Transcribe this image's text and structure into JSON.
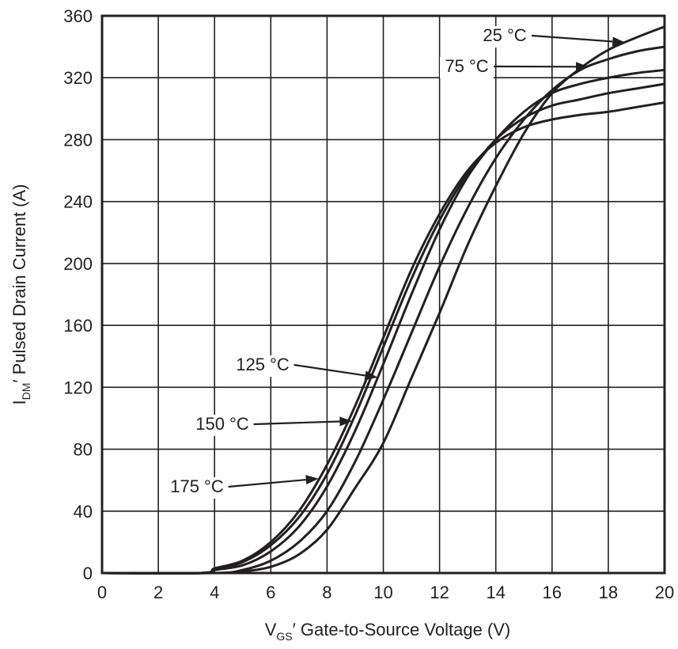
{
  "chart_data": {
    "type": "line",
    "title": "",
    "xlabel": {
      "main": "V",
      "sub": "GS",
      "rest": "′ Gate-to-Source Voltage (V)"
    },
    "ylabel": {
      "main": "I",
      "sub": "DM",
      "rest": "′ Pulsed Drain Current (A)"
    },
    "xlim": [
      0,
      20
    ],
    "ylim": [
      0,
      360
    ],
    "x_ticks": [
      "0",
      "2",
      "4",
      "6",
      "8",
      "10",
      "12",
      "14",
      "16",
      "18",
      "20"
    ],
    "y_ticks": [
      "0",
      "40",
      "80",
      "120",
      "160",
      "200",
      "240",
      "280",
      "320",
      "360"
    ],
    "grid": true,
    "series": [
      {
        "name": "25 °C",
        "x": [
          0,
          4,
          5,
          6,
          7,
          8,
          9,
          10,
          11,
          12,
          13,
          14,
          15,
          16,
          17,
          18,
          19,
          20
        ],
        "y": [
          0,
          0,
          1,
          4,
          12,
          28,
          55,
          84,
          126,
          168,
          212,
          250,
          284,
          310,
          326,
          338,
          346,
          353
        ]
      },
      {
        "name": "75 °C",
        "x": [
          0,
          4,
          5,
          6,
          7,
          8,
          9,
          10,
          11,
          12,
          13,
          14,
          15,
          16,
          17,
          18,
          19,
          20
        ],
        "y": [
          0,
          0,
          2,
          8,
          20,
          40,
          72,
          112,
          155,
          198,
          236,
          268,
          293,
          312,
          325,
          332,
          337,
          340
        ]
      },
      {
        "name": "125 °C",
        "x": [
          0,
          3.5,
          4,
          5,
          6,
          7,
          8,
          9,
          10,
          11,
          12,
          13,
          14,
          15,
          16,
          17,
          18,
          19,
          20
        ],
        "y": [
          0,
          0,
          2,
          5,
          14,
          30,
          56,
          92,
          135,
          180,
          222,
          256,
          280,
          298,
          310,
          316,
          320,
          323,
          325
        ]
      },
      {
        "name": "150 °C",
        "x": [
          0,
          3.5,
          4,
          5,
          6,
          7,
          8,
          9,
          10,
          11,
          12,
          13,
          14,
          15,
          16,
          17,
          18,
          19,
          20
        ],
        "y": [
          0,
          0,
          2,
          7,
          18,
          36,
          64,
          102,
          146,
          190,
          228,
          258,
          280,
          294,
          302,
          306,
          310,
          313,
          316
        ]
      },
      {
        "name": "175 °C",
        "x": [
          0,
          3.5,
          4,
          5,
          6,
          7,
          8,
          9,
          10,
          11,
          12,
          13,
          14,
          15,
          16,
          17,
          18,
          19,
          20
        ],
        "y": [
          0,
          0,
          3,
          8,
          20,
          40,
          70,
          108,
          152,
          196,
          232,
          260,
          278,
          288,
          293,
          296,
          298,
          301,
          304
        ]
      }
    ],
    "annotations": [
      {
        "text": "25 °C",
        "series": "25 °C",
        "target_x": 18.6
      },
      {
        "text": "75 °C",
        "series": "75 °C",
        "target_x": 17.3
      },
      {
        "text": "125 °C",
        "series": "125 °C",
        "target_x": 9.8
      },
      {
        "text": "150 °C",
        "series": "150 °C",
        "target_x": 8.9
      },
      {
        "text": "175 °C",
        "series": "175 °C",
        "target_x": 7.7
      }
    ],
    "colors": {
      "line": "#231f20",
      "grid": "#231f20",
      "background": "#ffffff"
    }
  }
}
